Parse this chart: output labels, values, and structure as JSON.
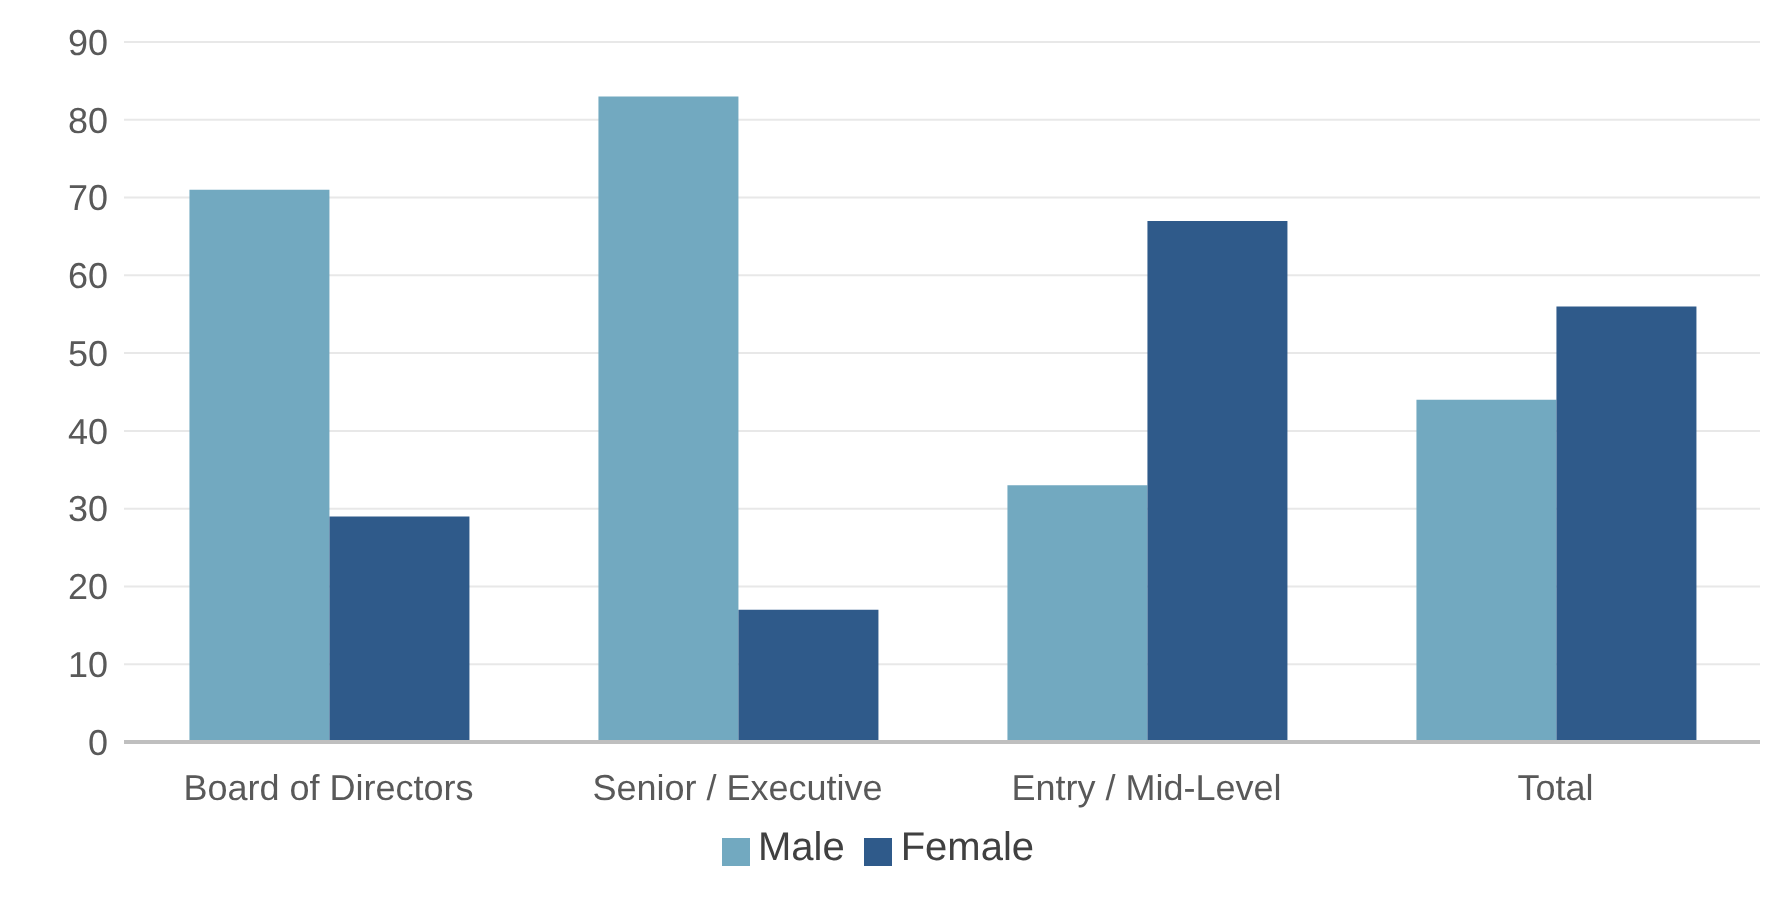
{
  "chart_data": {
    "type": "bar",
    "categories": [
      "Board of Directors",
      "Senior / Executive",
      "Entry / Mid-Level",
      "Total"
    ],
    "series": [
      {
        "name": "Male",
        "color": "#72a9c0",
        "values": [
          71,
          83,
          33,
          44
        ]
      },
      {
        "name": "Female",
        "color": "#2f5a8a",
        "values": [
          29,
          17,
          67,
          56
        ]
      }
    ],
    "ylim": [
      0,
      90
    ],
    "yticks": [
      0,
      10,
      20,
      30,
      40,
      50,
      60,
      70,
      80,
      90
    ],
    "grid": "y",
    "legend": "bottom"
  }
}
